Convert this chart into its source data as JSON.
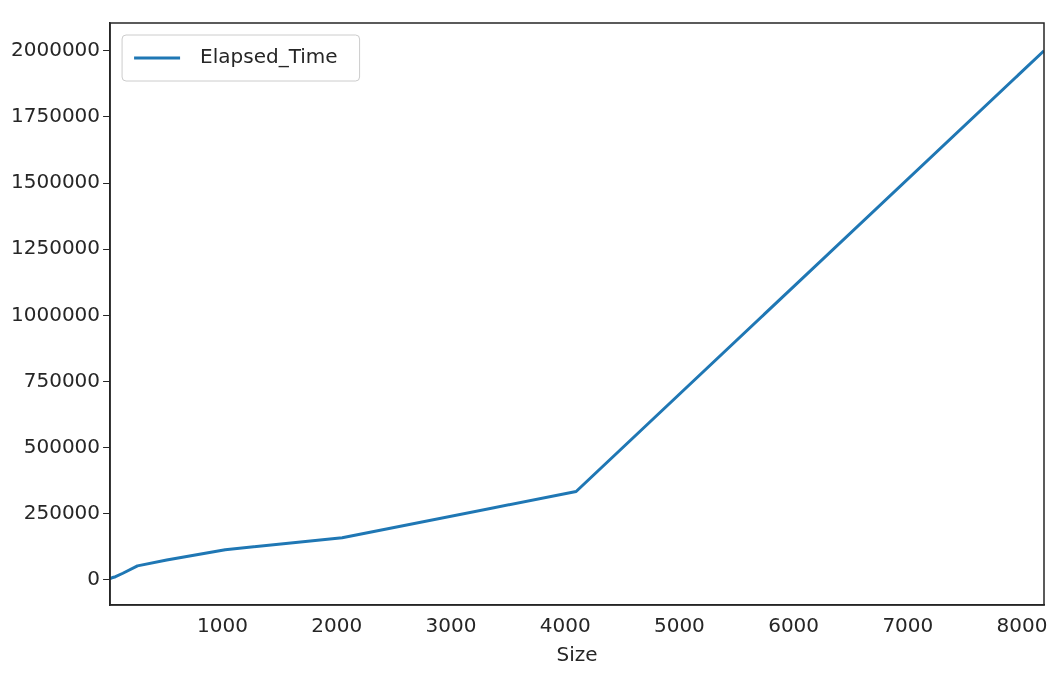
{
  "chart_data": {
    "type": "line",
    "xlabel": "Size",
    "x": [
      16,
      32,
      64,
      128,
      256,
      512,
      1024,
      2048,
      4096,
      8192
    ],
    "series": [
      {
        "name": "Elapsed_Time",
        "color": "#1f77b4",
        "values": [
          5000,
          8000,
          12000,
          25000,
          53000,
          75000,
          114000,
          159000,
          334000,
          2000000
        ]
      }
    ],
    "xlim": [
      16,
      8192
    ],
    "xticks": [
      1000,
      2000,
      3000,
      4000,
      5000,
      6000,
      7000,
      8000
    ],
    "ylim": [
      -95000,
      2105000
    ],
    "yticks": [
      0,
      250000,
      500000,
      750000,
      1000000,
      1250000,
      1500000,
      1750000,
      2000000
    ],
    "grid": false,
    "legend": "top left"
  }
}
